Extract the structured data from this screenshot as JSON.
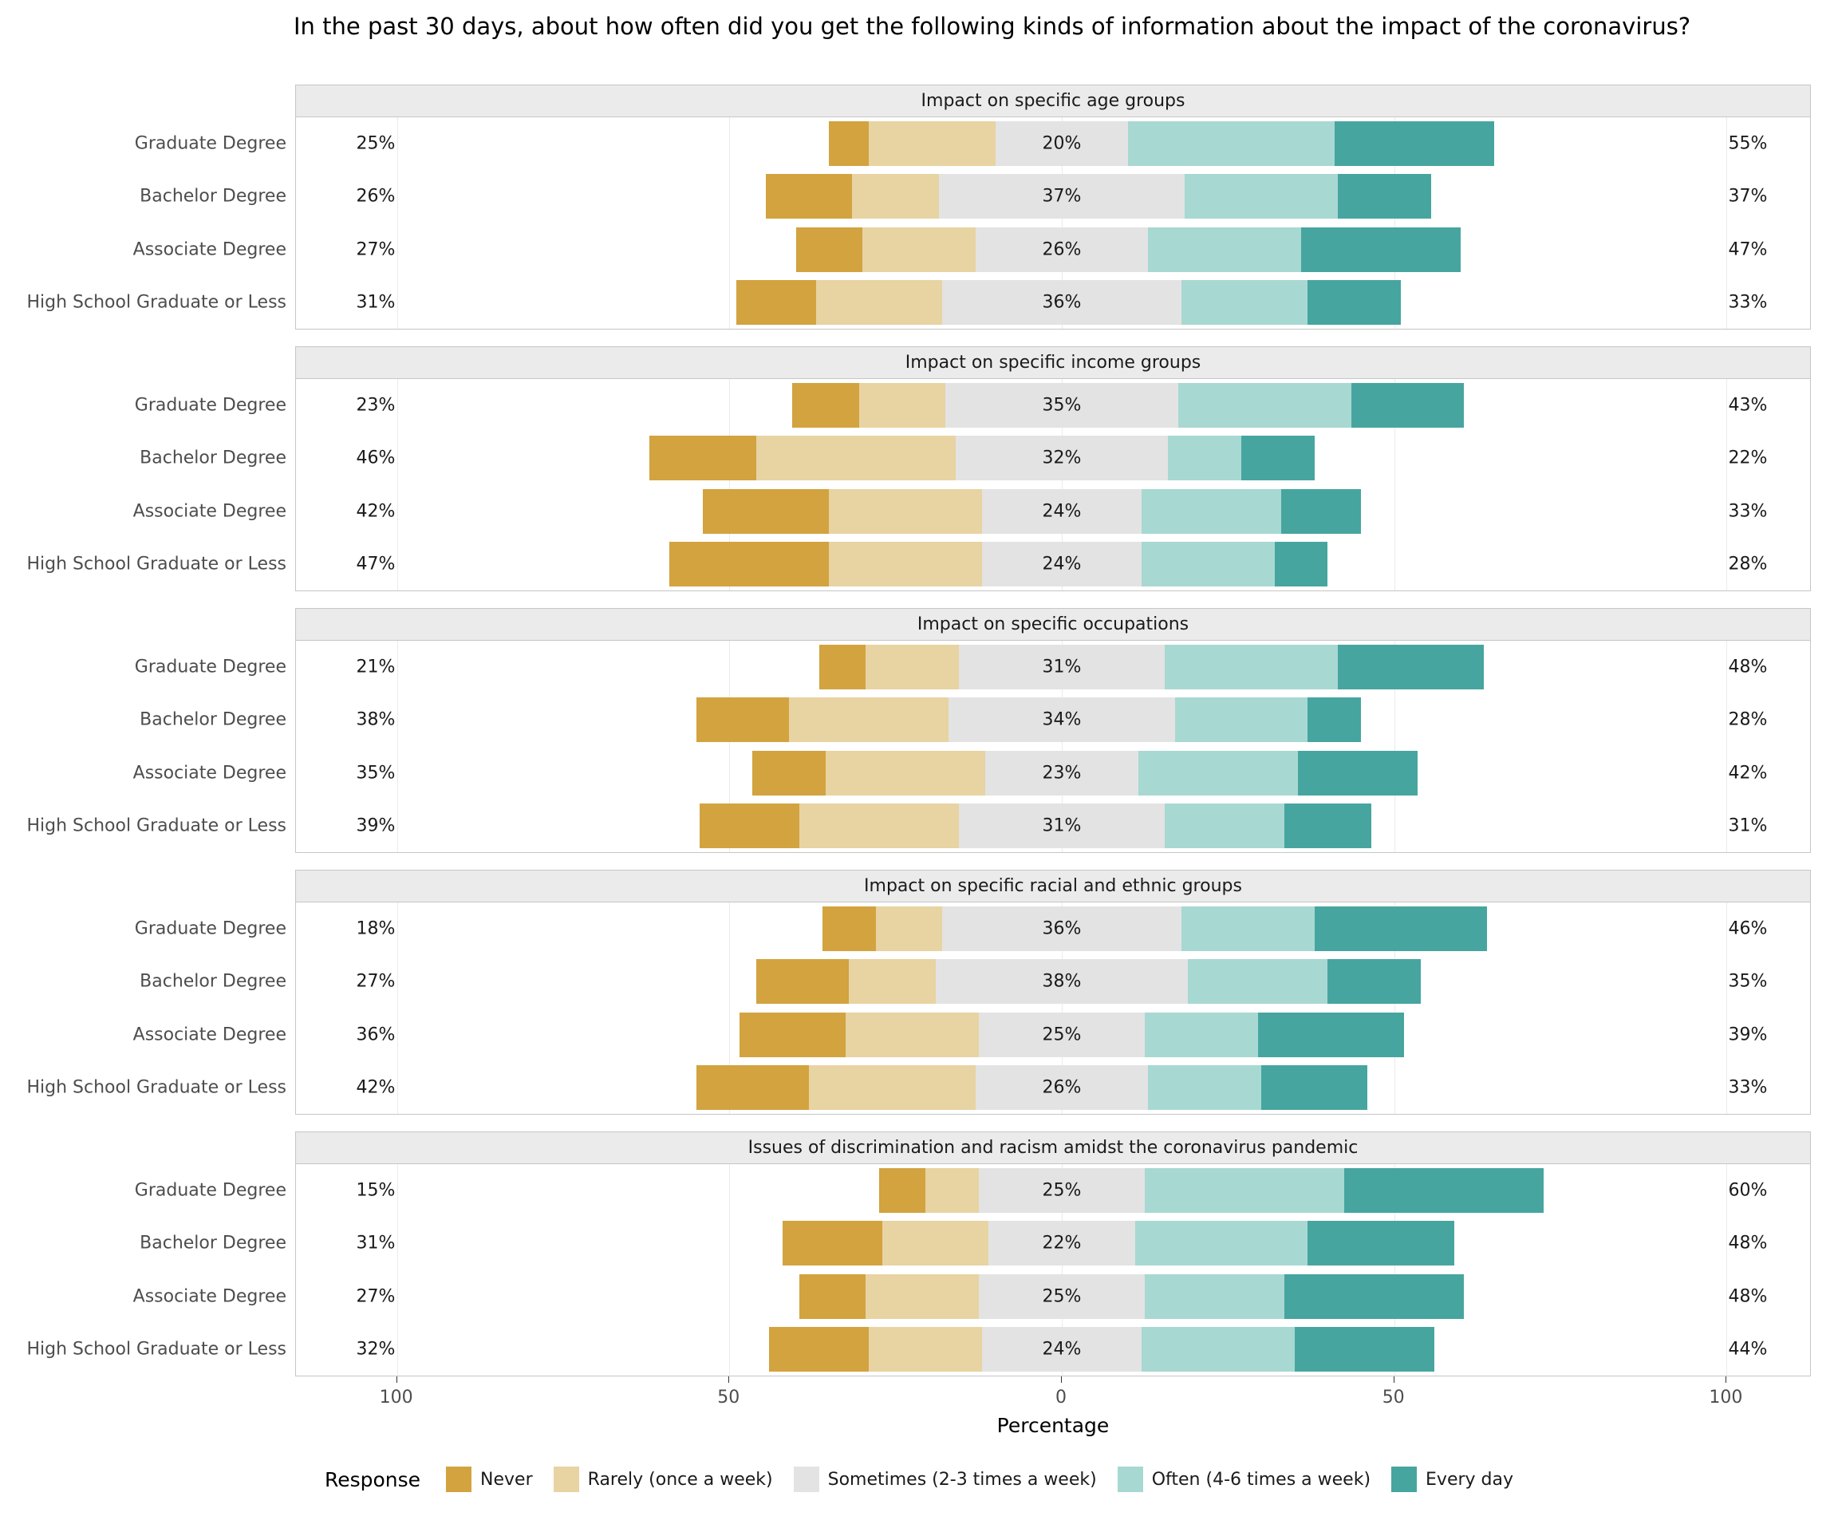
{
  "chart_data": {
    "type": "bar",
    "subtype": "diverging-stacked-likert",
    "title": "In the past 30 days, about how often did you get the following kinds of information about the impact of the coronavirus?",
    "xlabel": "Percentage",
    "legend_title": "Response",
    "legend_position": "bottom",
    "grid": "on",
    "xlim": [
      -114,
      114
    ],
    "segment_order": [
      "never",
      "rarely",
      "sometimes",
      "often",
      "everyday"
    ],
    "legend_keys": [
      {
        "key": "never",
        "label": "Never",
        "color": "#d2a33f"
      },
      {
        "key": "rarely",
        "label": "Rarely (once a week)",
        "color": "#e8d3a2"
      },
      {
        "key": "sometimes",
        "label": "Sometimes (2-3 times a week)",
        "color": "#e3e3e3"
      },
      {
        "key": "often",
        "label": "Often (4-6 times a week)",
        "color": "#a8d8d2"
      },
      {
        "key": "everyday",
        "label": "Every day",
        "color": "#47a5a0"
      }
    ],
    "axis_ticks": [
      {
        "value": -100,
        "label": "100"
      },
      {
        "value": -50,
        "label": "50"
      },
      {
        "value": 0,
        "label": "0"
      },
      {
        "value": 50,
        "label": "50"
      },
      {
        "value": 100,
        "label": "100"
      }
    ],
    "categories": [
      "Graduate Degree",
      "Bachelor Degree",
      "Associate Degree",
      "High School Graduate or Less"
    ],
    "panels": [
      {
        "title": "Impact on specific age groups",
        "rows": [
          {
            "category": "Graduate Degree",
            "left_label": "25%",
            "mid_label": "20%",
            "right_label": "55%",
            "values": {
              "never": 6,
              "rarely": 19,
              "sometimes": 20,
              "often": 31,
              "everyday": 24
            }
          },
          {
            "category": "Bachelor Degree",
            "left_label": "26%",
            "mid_label": "37%",
            "right_label": "37%",
            "values": {
              "never": 13,
              "rarely": 13,
              "sometimes": 37,
              "often": 23,
              "everyday": 14
            }
          },
          {
            "category": "Associate Degree",
            "left_label": "27%",
            "mid_label": "26%",
            "right_label": "47%",
            "values": {
              "never": 10,
              "rarely": 17,
              "sometimes": 26,
              "often": 23,
              "everyday": 24
            }
          },
          {
            "category": "High School Graduate or Less",
            "left_label": "31%",
            "mid_label": "36%",
            "right_label": "33%",
            "values": {
              "never": 12,
              "rarely": 19,
              "sometimes": 36,
              "often": 19,
              "everyday": 14
            }
          }
        ]
      },
      {
        "title": "Impact on specific income groups",
        "rows": [
          {
            "category": "Graduate Degree",
            "left_label": "23%",
            "mid_label": "35%",
            "right_label": "43%",
            "values": {
              "never": 10,
              "rarely": 13,
              "sometimes": 35,
              "often": 26,
              "everyday": 17
            }
          },
          {
            "category": "Bachelor Degree",
            "left_label": "46%",
            "mid_label": "32%",
            "right_label": "22%",
            "values": {
              "never": 16,
              "rarely": 30,
              "sometimes": 32,
              "often": 11,
              "everyday": 11
            }
          },
          {
            "category": "Associate Degree",
            "left_label": "42%",
            "mid_label": "24%",
            "right_label": "33%",
            "values": {
              "never": 19,
              "rarely": 23,
              "sometimes": 24,
              "often": 21,
              "everyday": 12
            }
          },
          {
            "category": "High School Graduate or Less",
            "left_label": "47%",
            "mid_label": "24%",
            "right_label": "28%",
            "values": {
              "never": 24,
              "rarely": 23,
              "sometimes": 24,
              "often": 20,
              "everyday": 8
            }
          }
        ]
      },
      {
        "title": "Impact on specific occupations",
        "rows": [
          {
            "category": "Graduate Degree",
            "left_label": "21%",
            "mid_label": "31%",
            "right_label": "48%",
            "values": {
              "never": 7,
              "rarely": 14,
              "sometimes": 31,
              "often": 26,
              "everyday": 22
            }
          },
          {
            "category": "Bachelor Degree",
            "left_label": "38%",
            "mid_label": "34%",
            "right_label": "28%",
            "values": {
              "never": 14,
              "rarely": 24,
              "sometimes": 34,
              "often": 20,
              "everyday": 8
            }
          },
          {
            "category": "Associate Degree",
            "left_label": "35%",
            "mid_label": "23%",
            "right_label": "42%",
            "values": {
              "never": 11,
              "rarely": 24,
              "sometimes": 23,
              "often": 24,
              "everyday": 18
            }
          },
          {
            "category": "High School Graduate or Less",
            "left_label": "39%",
            "mid_label": "31%",
            "right_label": "31%",
            "values": {
              "never": 15,
              "rarely": 24,
              "sometimes": 31,
              "often": 18,
              "everyday": 13
            }
          }
        ]
      },
      {
        "title": "Impact on specific racial and ethnic groups",
        "rows": [
          {
            "category": "Graduate Degree",
            "left_label": "18%",
            "mid_label": "36%",
            "right_label": "46%",
            "values": {
              "never": 8,
              "rarely": 10,
              "sometimes": 36,
              "often": 20,
              "everyday": 26
            }
          },
          {
            "category": "Bachelor Degree",
            "left_label": "27%",
            "mid_label": "38%",
            "right_label": "35%",
            "values": {
              "never": 14,
              "rarely": 13,
              "sometimes": 38,
              "often": 21,
              "everyday": 14
            }
          },
          {
            "category": "Associate Degree",
            "left_label": "36%",
            "mid_label": "25%",
            "right_label": "39%",
            "values": {
              "never": 16,
              "rarely": 20,
              "sometimes": 25,
              "often": 17,
              "everyday": 22
            }
          },
          {
            "category": "High School Graduate or Less",
            "left_label": "42%",
            "mid_label": "26%",
            "right_label": "33%",
            "values": {
              "never": 17,
              "rarely": 25,
              "sometimes": 26,
              "often": 17,
              "everyday": 16
            }
          }
        ]
      },
      {
        "title": "Issues of discrimination and racism amidst the coronavirus pandemic",
        "rows": [
          {
            "category": "Graduate Degree",
            "left_label": "15%",
            "mid_label": "25%",
            "right_label": "60%",
            "values": {
              "never": 7,
              "rarely": 8,
              "sometimes": 25,
              "often": 30,
              "everyday": 30
            }
          },
          {
            "category": "Bachelor Degree",
            "left_label": "31%",
            "mid_label": "22%",
            "right_label": "48%",
            "values": {
              "never": 15,
              "rarely": 16,
              "sometimes": 22,
              "often": 26,
              "everyday": 22
            }
          },
          {
            "category": "Associate Degree",
            "left_label": "27%",
            "mid_label": "25%",
            "right_label": "48%",
            "values": {
              "never": 10,
              "rarely": 17,
              "sometimes": 25,
              "often": 21,
              "everyday": 27
            }
          },
          {
            "category": "High School Graduate or Less",
            "left_label": "32%",
            "mid_label": "24%",
            "right_label": "44%",
            "values": {
              "never": 15,
              "rarely": 17,
              "sometimes": 24,
              "often": 23,
              "everyday": 21
            }
          }
        ]
      }
    ]
  }
}
